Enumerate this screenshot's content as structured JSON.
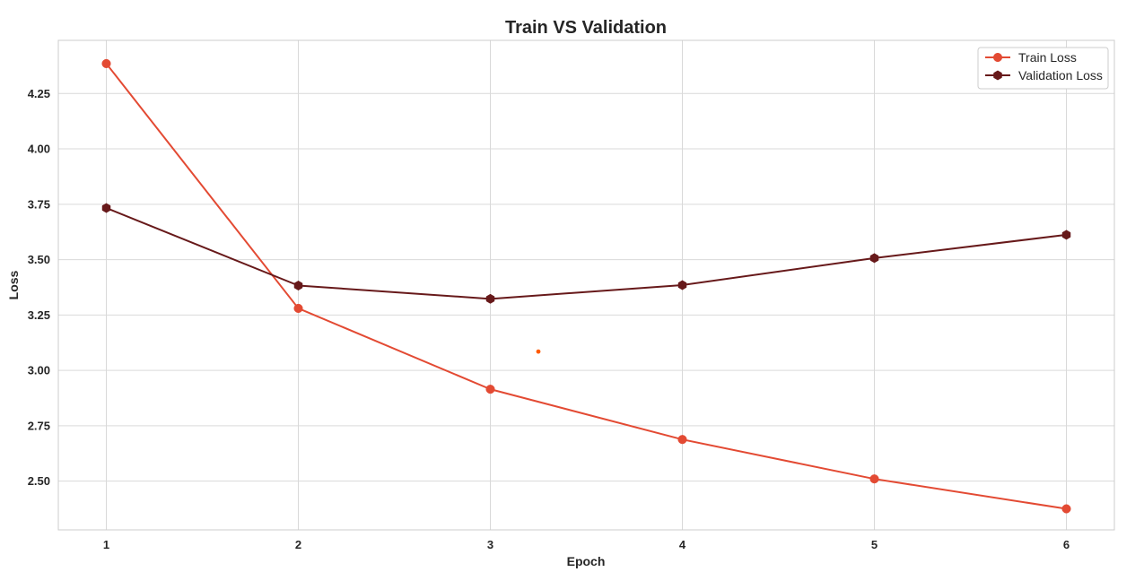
{
  "chart_data": {
    "type": "line",
    "title": "Train VS Validation",
    "xlabel": "Epoch",
    "ylabel": "Loss",
    "x": [
      1,
      2,
      3,
      4,
      5,
      6
    ],
    "xticks": [
      "1",
      "2",
      "3",
      "4",
      "5",
      "6"
    ],
    "yticks": [
      "2.50",
      "2.75",
      "3.00",
      "3.25",
      "3.50",
      "3.75",
      "4.00",
      "4.25"
    ],
    "xlim": [
      0.75,
      6.25
    ],
    "ylim": [
      2.28,
      4.49
    ],
    "grid": true,
    "legend_position": "top-right",
    "series": [
      {
        "name": "Train Loss",
        "values": [
          4.385,
          3.28,
          2.915,
          2.688,
          2.51,
          2.375
        ],
        "color": "#e34a33",
        "marker": "circle"
      },
      {
        "name": "Validation Loss",
        "values": [
          3.733,
          3.383,
          3.323,
          3.385,
          3.507,
          3.612
        ],
        "color": "#67191a",
        "marker": "hexagon"
      }
    ],
    "annotations": [
      {
        "x": 3.25,
        "y": 3.085,
        "color": "#ff5a00"
      }
    ]
  }
}
